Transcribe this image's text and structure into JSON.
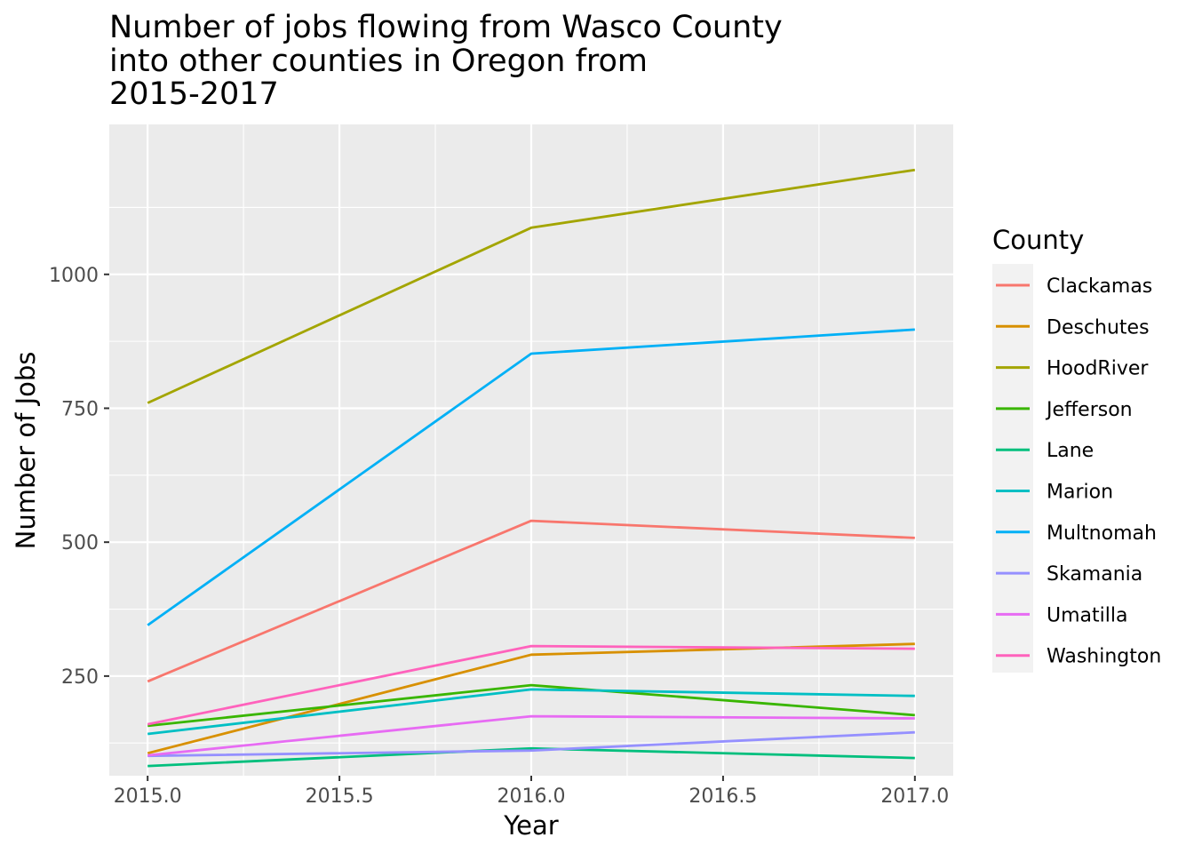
{
  "chart_data": {
    "type": "line",
    "title": [
      "Number of jobs flowing from Wasco County",
      "into other counties in Oregon from",
      "2015-2017"
    ],
    "xlabel": "Year",
    "ylabel": "Number of Jobs",
    "x": [
      2015,
      2016,
      2017
    ],
    "xlim": [
      2014.9,
      2017.1
    ],
    "ylim": [
      64,
      1280
    ],
    "x_ticks": [
      2015.0,
      2015.5,
      2016.0,
      2016.5,
      2017.0
    ],
    "x_tick_labels": [
      "2015.0",
      "2015.5",
      "2016.0",
      "2016.5",
      "2017.0"
    ],
    "y_ticks": [
      250,
      500,
      750,
      1000
    ],
    "y_tick_labels": [
      "250",
      "500",
      "750",
      "1000"
    ],
    "grid": true,
    "legend": {
      "title": "County",
      "placement": "right"
    },
    "series": [
      {
        "name": "Clackamas",
        "color": "#F8766D",
        "values": [
          240,
          540,
          508
        ]
      },
      {
        "name": "Deschutes",
        "color": "#D89000",
        "values": [
          106,
          290,
          310
        ]
      },
      {
        "name": "HoodRiver",
        "color": "#A3A500",
        "values": [
          760,
          1087,
          1195
        ]
      },
      {
        "name": "Jefferson",
        "color": "#39B600",
        "values": [
          157,
          233,
          177
        ]
      },
      {
        "name": "Lane",
        "color": "#00BF7D",
        "values": [
          82,
          115,
          97
        ]
      },
      {
        "name": "Marion",
        "color": "#00BFC4",
        "values": [
          142,
          225,
          213
        ]
      },
      {
        "name": "Multnomah",
        "color": "#00B0F6",
        "values": [
          345,
          852,
          897
        ]
      },
      {
        "name": "Skamania",
        "color": "#9590FF",
        "values": [
          101,
          111,
          145
        ]
      },
      {
        "name": "Umatilla",
        "color": "#E76BF3",
        "values": [
          102,
          175,
          171
        ]
      },
      {
        "name": "Washington",
        "color": "#FF62BC",
        "values": [
          160,
          306,
          301
        ]
      }
    ]
  }
}
